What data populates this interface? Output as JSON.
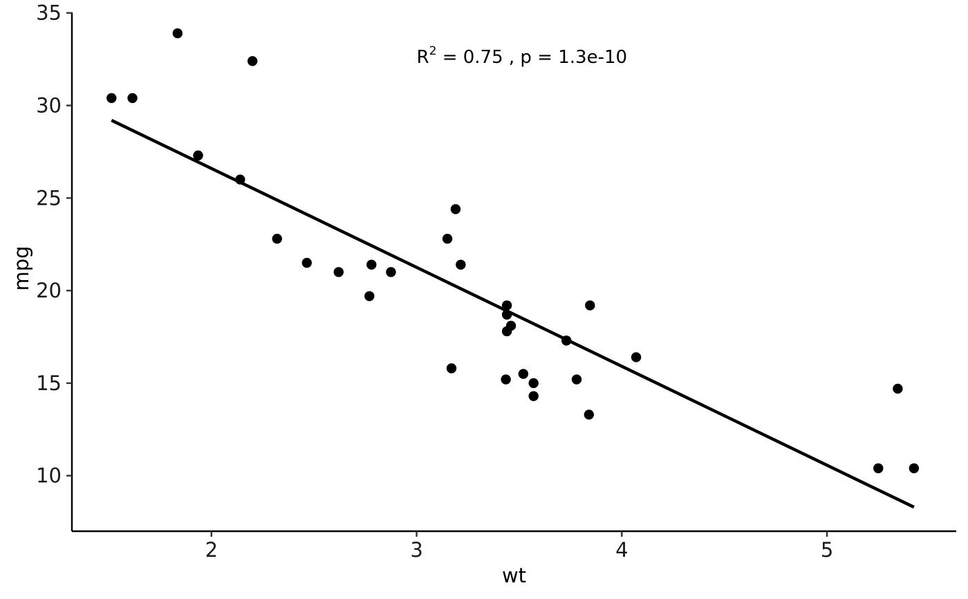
{
  "chart_data": {
    "type": "scatter",
    "xlabel": "wt",
    "ylabel": "mpg",
    "xlim": [
      1.32,
      5.63
    ],
    "ylim": [
      7.0,
      35.4
    ],
    "x_ticks": [
      2,
      3,
      4,
      5
    ],
    "y_ticks": [
      10,
      15,
      20,
      25,
      30,
      35
    ],
    "x_tick_labels": [
      "2",
      "3",
      "4",
      "5"
    ],
    "y_tick_labels": [
      "10",
      "15",
      "20",
      "25",
      "30",
      "35"
    ],
    "grid": false,
    "annotation": {
      "r_label": "R",
      "r_sup": "2",
      "rest": " = 0.75 , p = 1.3e-10",
      "x": 3.0,
      "y": 32.3
    },
    "fit_line": {
      "x": [
        1.513,
        5.424
      ],
      "y": [
        29.2,
        8.3
      ]
    },
    "points": [
      {
        "x": 2.62,
        "y": 21.0
      },
      {
        "x": 2.875,
        "y": 21.0
      },
      {
        "x": 2.32,
        "y": 22.8
      },
      {
        "x": 3.215,
        "y": 21.4
      },
      {
        "x": 3.44,
        "y": 18.7
      },
      {
        "x": 3.46,
        "y": 18.1
      },
      {
        "x": 3.57,
        "y": 14.3
      },
      {
        "x": 3.19,
        "y": 24.4
      },
      {
        "x": 3.15,
        "y": 22.8
      },
      {
        "x": 3.44,
        "y": 19.2
      },
      {
        "x": 3.44,
        "y": 17.8
      },
      {
        "x": 4.07,
        "y": 16.4
      },
      {
        "x": 3.73,
        "y": 17.3
      },
      {
        "x": 3.78,
        "y": 15.2
      },
      {
        "x": 5.25,
        "y": 10.4
      },
      {
        "x": 5.424,
        "y": 10.4
      },
      {
        "x": 5.345,
        "y": 14.7
      },
      {
        "x": 2.2,
        "y": 32.4
      },
      {
        "x": 1.615,
        "y": 30.4
      },
      {
        "x": 1.835,
        "y": 33.9
      },
      {
        "x": 2.465,
        "y": 21.5
      },
      {
        "x": 3.52,
        "y": 15.5
      },
      {
        "x": 3.435,
        "y": 15.2
      },
      {
        "x": 3.84,
        "y": 13.3
      },
      {
        "x": 3.845,
        "y": 19.2
      },
      {
        "x": 1.935,
        "y": 27.3
      },
      {
        "x": 2.14,
        "y": 26.0
      },
      {
        "x": 1.513,
        "y": 30.4
      },
      {
        "x": 3.17,
        "y": 15.8
      },
      {
        "x": 2.77,
        "y": 19.7
      },
      {
        "x": 3.57,
        "y": 15.0
      },
      {
        "x": 2.78,
        "y": 21.4
      }
    ]
  }
}
